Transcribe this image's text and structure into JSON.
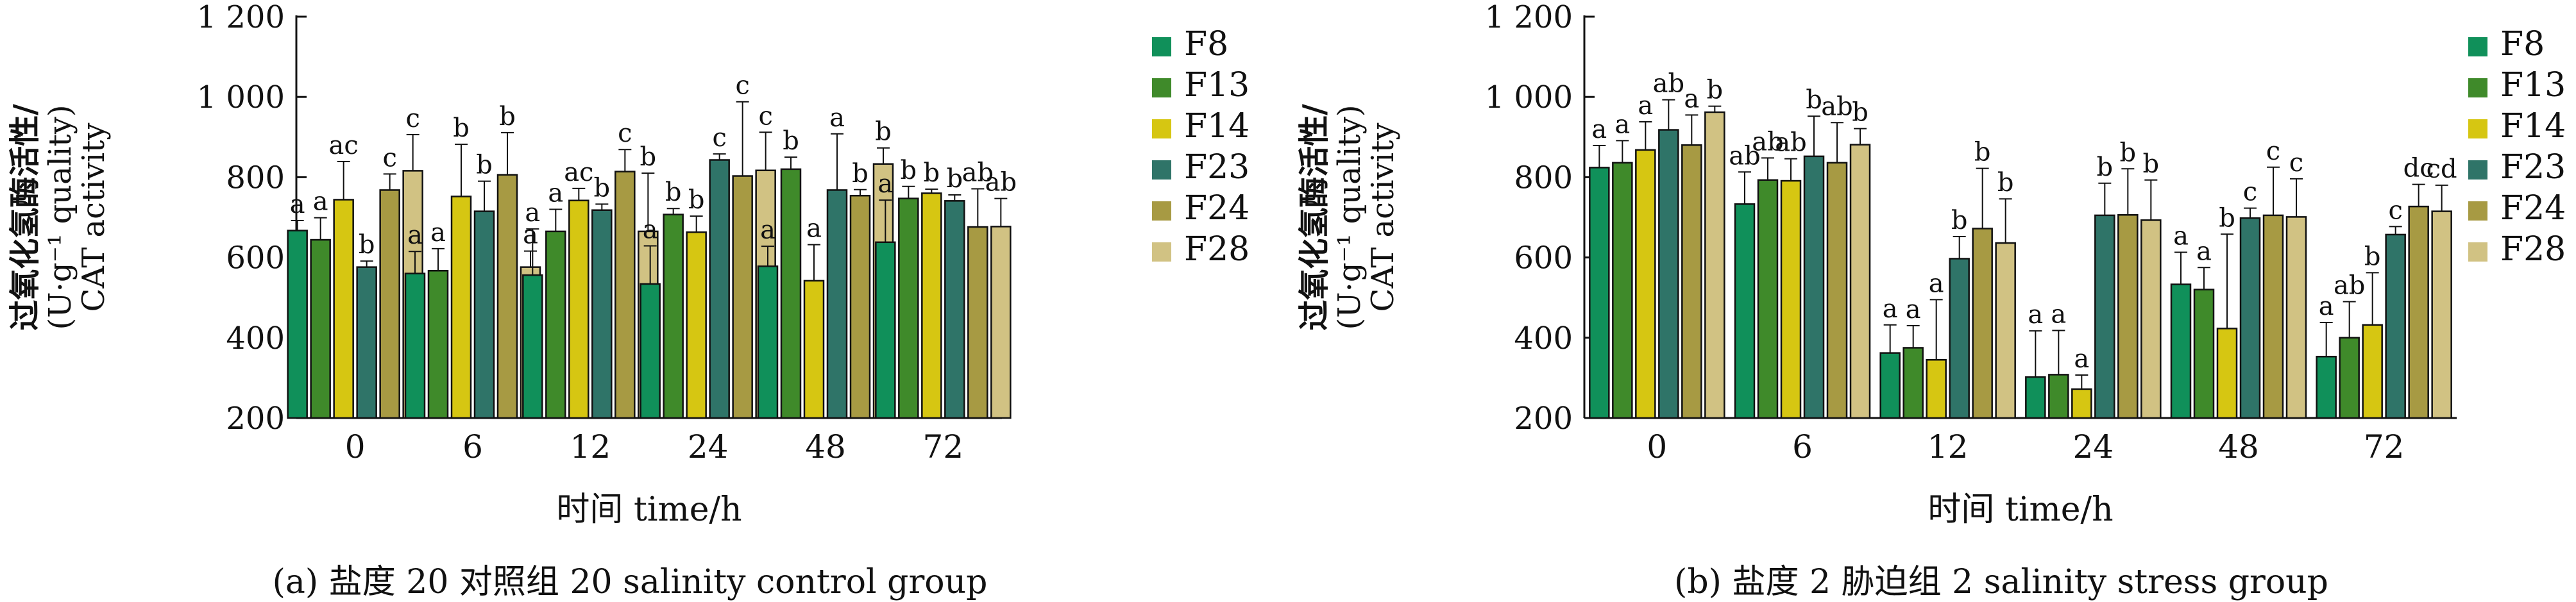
{
  "colors": {
    "F8": "#10905a",
    "F13": "#3f8a2a",
    "F14": "#d6c612",
    "F23": "#2f7468",
    "F24": "#a79a43",
    "F28": "#d1c283"
  },
  "chart_data": [
    {
      "type": "bar",
      "title": "(a) 盐度 20 对照组 20 salinity control group",
      "xlabel": "时间 time/h",
      "ylabel_lines": [
        "过氧化氢酶活性/",
        "(U·g⁻¹ quality)",
        "CAT activity"
      ],
      "ylim": [
        200,
        1200
      ],
      "yticks": [
        "200",
        "400",
        "600",
        "800",
        "1 000",
        "1 200"
      ],
      "categories": [
        "0",
        "6",
        "12",
        "24",
        "48",
        "72"
      ],
      "legend_position": "right",
      "series": [
        {
          "name": "F8",
          "values": [
            667,
            560,
            556,
            534,
            578,
            638
          ],
          "errors": [
            25,
            55,
            115,
            95,
            50,
            105
          ],
          "labels": [
            "a",
            "a",
            "a",
            "a",
            "a",
            "a"
          ]
        },
        {
          "name": "F13",
          "values": [
            644,
            567,
            665,
            707,
            820,
            747
          ],
          "errors": [
            55,
            55,
            55,
            15,
            30,
            30
          ],
          "labels": [
            "a",
            "a",
            "a",
            "b",
            "b",
            "b"
          ]
        },
        {
          "name": "F14",
          "values": [
            744,
            752,
            742,
            663,
            542,
            760
          ],
          "errors": [
            95,
            130,
            30,
            40,
            90,
            10
          ],
          "labels": [
            "ac",
            "b",
            "ac",
            "b",
            "a",
            "b"
          ]
        },
        {
          "name": "F23",
          "values": [
            576,
            715,
            718,
            843,
            768,
            741
          ],
          "errors": [
            15,
            75,
            15,
            15,
            140,
            15
          ],
          "labels": [
            "b",
            "b",
            "b",
            "c",
            "a",
            "b"
          ]
        },
        {
          "name": "F24",
          "values": [
            768,
            806,
            814,
            803,
            754,
            676
          ],
          "errors": [
            40,
            105,
            55,
            185,
            15,
            95
          ],
          "labels": [
            "c",
            "b",
            "c",
            "c",
            "b",
            "ab"
          ]
        },
        {
          "name": "F28",
          "values": [
            816,
            576,
            665,
            817,
            833,
            677
          ],
          "errors": [
            90,
            40,
            145,
            95,
            40,
            70
          ],
          "labels": [
            "c",
            "a",
            "b",
            "c",
            "b",
            "ab"
          ]
        }
      ]
    },
    {
      "type": "bar",
      "title": "(b) 盐度 2 胁迫组 2 salinity stress group",
      "xlabel": "时间 time/h",
      "ylabel_lines": [
        "过氧化氢酶活性/",
        "(U·g⁻¹ quality)",
        "CAT activity"
      ],
      "ylim": [
        200,
        1200
      ],
      "yticks": [
        "200",
        "400",
        "600",
        "800",
        "1 000",
        "1 200"
      ],
      "categories": [
        "0",
        "6",
        "12",
        "24",
        "48",
        "72"
      ],
      "legend_position": "right",
      "series": [
        {
          "name": "F8",
          "values": [
            824,
            733,
            362,
            302,
            533,
            353
          ],
          "errors": [
            55,
            80,
            70,
            115,
            80,
            85
          ],
          "labels": [
            "a",
            "ab",
            "a",
            "a",
            "a",
            "a"
          ]
        },
        {
          "name": "F13",
          "values": [
            836,
            793,
            375,
            308,
            520,
            400
          ],
          "errors": [
            55,
            55,
            55,
            110,
            55,
            90
          ],
          "labels": [
            "a",
            "ab",
            "a",
            "a",
            "a",
            "ab"
          ]
        },
        {
          "name": "F14",
          "values": [
            868,
            791,
            345,
            272,
            423,
            432
          ],
          "errors": [
            70,
            55,
            150,
            35,
            235,
            130
          ],
          "labels": [
            "a",
            "ab",
            "a",
            "a",
            "b",
            "b"
          ]
        },
        {
          "name": "F23",
          "values": [
            918,
            852,
            597,
            705,
            698,
            657
          ],
          "errors": [
            75,
            100,
            55,
            80,
            25,
            20
          ],
          "labels": [
            "ab",
            "b",
            "b",
            "b",
            "c",
            "c"
          ]
        },
        {
          "name": "F24",
          "values": [
            880,
            836,
            672,
            706,
            705,
            727
          ],
          "errors": [
            75,
            100,
            150,
            115,
            120,
            55
          ],
          "labels": [
            "a",
            "ab",
            "b",
            "b",
            "c",
            "dc"
          ]
        },
        {
          "name": "F28",
          "values": [
            962,
            881,
            636,
            693,
            701,
            715
          ],
          "errors": [
            15,
            40,
            110,
            100,
            95,
            65
          ],
          "labels": [
            "b",
            "b",
            "b",
            "b",
            "c",
            "cd"
          ]
        }
      ]
    }
  ]
}
